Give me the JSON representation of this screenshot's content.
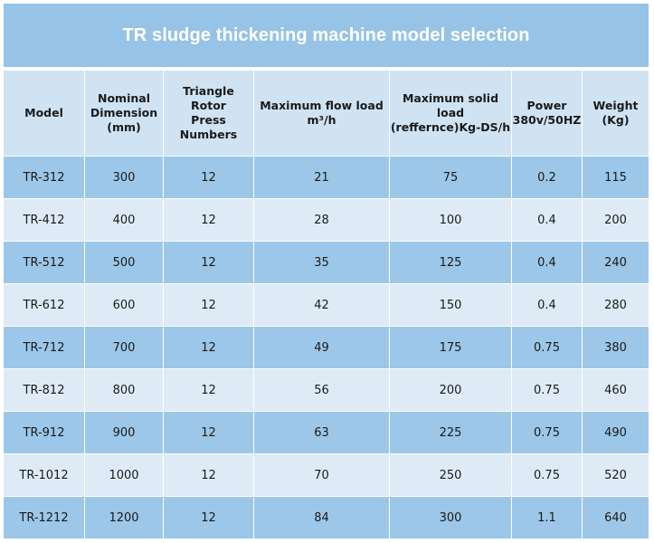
{
  "title": "TR sludge thickening machine model selection",
  "header": {
    "model": "Model",
    "nominal": [
      "Nominal",
      "Dimension",
      "(mm)"
    ],
    "rotor": [
      "Triangle Rotor",
      "Press Numbers"
    ],
    "flow": [
      "Maximum flow load",
      "m³/h"
    ],
    "solid": [
      "Maximum solid load",
      "(reffernce)Kg-DS/h"
    ],
    "power": [
      "Power",
      "380v/50HZ"
    ],
    "weight": [
      "Weight",
      "(Kg)"
    ]
  },
  "rows": [
    {
      "model": "TR-312",
      "dimension": "300",
      "rotor": "12",
      "flow": "21",
      "solid": "75",
      "power": "0.2",
      "weight": "115"
    },
    {
      "model": "TR-412",
      "dimension": "400",
      "rotor": "12",
      "flow": "28",
      "solid": "100",
      "power": "0.4",
      "weight": "200"
    },
    {
      "model": "TR-512",
      "dimension": "500",
      "rotor": "12",
      "flow": "35",
      "solid": "125",
      "power": "0.4",
      "weight": "240"
    },
    {
      "model": "TR-612",
      "dimension": "600",
      "rotor": "12",
      "flow": "42",
      "solid": "150",
      "power": "0.4",
      "weight": "280"
    },
    {
      "model": "TR-712",
      "dimension": "700",
      "rotor": "12",
      "flow": "49",
      "solid": "175",
      "power": "0.75",
      "weight": "380"
    },
    {
      "model": "TR-812",
      "dimension": "800",
      "rotor": "12",
      "flow": "56",
      "solid": "200",
      "power": "0.75",
      "weight": "460"
    },
    {
      "model": "TR-912",
      "dimension": "900",
      "rotor": "12",
      "flow": "63",
      "solid": "225",
      "power": "0.75",
      "weight": "490"
    },
    {
      "model": "TR-1012",
      "dimension": "1000",
      "rotor": "12",
      "flow": "70",
      "solid": "250",
      "power": "0.75",
      "weight": "520"
    },
    {
      "model": "TR-1212",
      "dimension": "1200",
      "rotor": "12",
      "flow": "84",
      "solid": "300",
      "power": "1.1",
      "weight": "640"
    }
  ],
  "colors": {
    "title_bg": "#96c3e6",
    "header_bg": "#cfe3f3",
    "row_dark": "#9cc7e8",
    "row_light": "#deebf6"
  }
}
